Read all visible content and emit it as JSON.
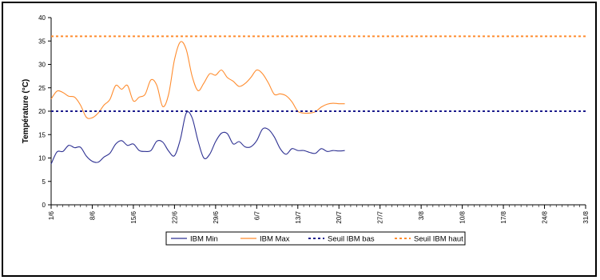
{
  "chart_data": {
    "type": "line",
    "title": "",
    "xlabel": "",
    "ylabel": "Température (°C)",
    "ylim": [
      0,
      40
    ],
    "y_ticks": [
      0,
      5,
      10,
      15,
      20,
      25,
      30,
      35,
      40
    ],
    "x_range_days": [
      0,
      91
    ],
    "x_ticks": [
      {
        "label": "1/6",
        "day": 0
      },
      {
        "label": "8/6",
        "day": 7
      },
      {
        "label": "15/6",
        "day": 14
      },
      {
        "label": "22/6",
        "day": 21
      },
      {
        "label": "29/6",
        "day": 28
      },
      {
        "label": "6/7",
        "day": 35
      },
      {
        "label": "13/7",
        "day": 42
      },
      {
        "label": "20/7",
        "day": 49
      },
      {
        "label": "27/7",
        "day": 56
      },
      {
        "label": "3/8",
        "day": 63
      },
      {
        "label": "10/8",
        "day": 70
      },
      {
        "label": "17/8",
        "day": 77
      },
      {
        "label": "24/8",
        "day": 84
      },
      {
        "label": "31/8",
        "day": 91
      }
    ],
    "grid": false,
    "legend_position": "bottom",
    "series": [
      {
        "name": "IBM Min",
        "color": "#2e3192",
        "style": "solid",
        "x": [
          0,
          1,
          2,
          3,
          4,
          5,
          6,
          7,
          8,
          9,
          10,
          11,
          12,
          13,
          14,
          15,
          16,
          17,
          18,
          19,
          20,
          21,
          22,
          23,
          24,
          25,
          26,
          27,
          28,
          29,
          30,
          31,
          32,
          33,
          34,
          35,
          36,
          37,
          38,
          39,
          40,
          41,
          42,
          43,
          44,
          45,
          46,
          47,
          48,
          49,
          50
        ],
        "values": [
          8.7,
          11.3,
          11.4,
          12.7,
          12.2,
          12.3,
          10.4,
          9.3,
          9.1,
          10.2,
          11.0,
          13.0,
          13.7,
          12.7,
          13.0,
          11.6,
          11.4,
          11.6,
          13.6,
          13.4,
          11.5,
          10.5,
          14.0,
          19.6,
          18.6,
          13.7,
          10.0,
          10.8,
          13.5,
          15.3,
          15.2,
          13.0,
          13.5,
          12.4,
          12.4,
          13.7,
          16.2,
          16.1,
          14.5,
          12.0,
          10.8,
          12.0,
          11.6,
          11.6,
          11.2,
          11.0,
          12.0,
          11.4,
          11.6,
          11.5,
          11.6
        ]
      },
      {
        "name": "IBM Max",
        "color": "#ff8c2e",
        "style": "solid",
        "x": [
          0,
          1,
          2,
          3,
          4,
          5,
          6,
          7,
          8,
          9,
          10,
          11,
          12,
          13,
          14,
          15,
          16,
          17,
          18,
          19,
          20,
          21,
          22,
          23,
          24,
          25,
          26,
          27,
          28,
          29,
          30,
          31,
          32,
          33,
          34,
          35,
          36,
          37,
          38,
          39,
          40,
          41,
          42,
          43,
          44,
          45,
          46,
          47,
          48,
          49,
          50
        ],
        "values": [
          22.6,
          24.3,
          24.0,
          23.2,
          23.0,
          21.3,
          18.7,
          18.6,
          19.6,
          21.3,
          22.5,
          25.5,
          24.7,
          25.5,
          22.2,
          23.0,
          23.6,
          26.7,
          25.5,
          21.0,
          23.6,
          31.0,
          34.8,
          33.2,
          27.5,
          24.4,
          26.0,
          28.0,
          27.7,
          28.8,
          27.2,
          26.4,
          25.3,
          25.9,
          27.2,
          28.8,
          28.0,
          26.0,
          23.6,
          23.7,
          23.3,
          22.0,
          20.0,
          19.6,
          19.6,
          19.9,
          20.9,
          21.5,
          21.7,
          21.6,
          21.6
        ]
      },
      {
        "name": "Seuil IBM bas",
        "color": "#1c1c8c",
        "style": "dashed",
        "x": [
          0,
          91
        ],
        "values": [
          20,
          20
        ]
      },
      {
        "name": "Seuil IBM haut",
        "color": "#ff8c2e",
        "style": "dashed",
        "x": [
          0,
          91
        ],
        "values": [
          36,
          36
        ]
      }
    ]
  }
}
